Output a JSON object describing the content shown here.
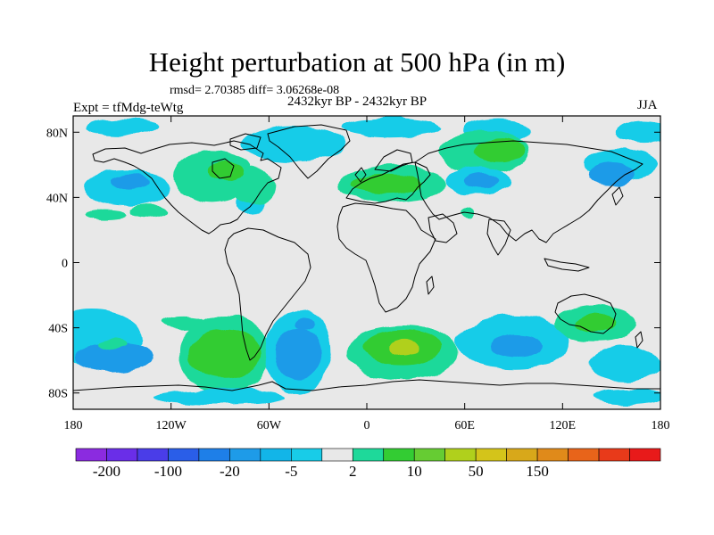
{
  "chart_data": {
    "type": "heatmap",
    "subtype": "filled contour map",
    "title": "Height perturbation at 500 hPa (in m)",
    "stats_text": "rmsd= 2.70385 diff= 3.06268e-08",
    "subtitle": "2432kyr BP - 2432kyr BP",
    "left_label": "Expt = tfMdg-teWtg",
    "right_label": "JJA",
    "x_range": [
      -180,
      180
    ],
    "y_range": [
      -90,
      90
    ],
    "x_ticks": [
      {
        "value": -180,
        "label": "180"
      },
      {
        "value": -120,
        "label": "120W"
      },
      {
        "value": -60,
        "label": "60W"
      },
      {
        "value": 0,
        "label": "0"
      },
      {
        "value": 60,
        "label": "60E"
      },
      {
        "value": 120,
        "label": "120E"
      },
      {
        "value": 180,
        "label": "180"
      }
    ],
    "y_ticks": [
      {
        "value": 80,
        "label": "80N"
      },
      {
        "value": 40,
        "label": "40N"
      },
      {
        "value": 0,
        "label": "0"
      },
      {
        "value": -40,
        "label": "40S"
      },
      {
        "value": -80,
        "label": "80S"
      }
    ],
    "colorbar": {
      "colors": [
        "#8b2be0",
        "#6a2ee8",
        "#4a3de8",
        "#2a5ee8",
        "#1e7fe8",
        "#1e9be8",
        "#12b5e8",
        "#18cce8",
        "#e8e8e8",
        "#1ed99a",
        "#33cc33",
        "#66cc33",
        "#b0d01c",
        "#d4c41a",
        "#d8a81a",
        "#e08a1a",
        "#e8641a",
        "#e83a1a",
        "#e81a1a"
      ],
      "labels": [
        {
          "bin": 1,
          "text": "-200"
        },
        {
          "bin": 3,
          "text": "-100"
        },
        {
          "bin": 5,
          "text": "-20"
        },
        {
          "bin": 7,
          "text": "-5"
        },
        {
          "bin": 9,
          "text": "2"
        },
        {
          "bin": 11,
          "text": "10"
        },
        {
          "bin": 13,
          "text": "50"
        },
        {
          "bin": 15,
          "text": "150"
        }
      ]
    },
    "anomaly_regions": [
      {
        "lon": -150,
        "lat": 83,
        "rlon": 22,
        "rlat": 5,
        "level": "light-blue"
      },
      {
        "lon": -45,
        "lat": 73,
        "rlon": 32,
        "rlat": 11,
        "level": "light-blue"
      },
      {
        "lon": 15,
        "lat": 83,
        "rlon": 30,
        "rlat": 6,
        "level": "light-blue"
      },
      {
        "lon": 80,
        "lat": 81,
        "rlon": 20,
        "rlat": 7,
        "level": "light-blue"
      },
      {
        "lon": 170,
        "lat": 80,
        "rlon": 18,
        "rlat": 7,
        "level": "light-blue"
      },
      {
        "lon": -148,
        "lat": 46,
        "rlon": 26,
        "rlat": 11,
        "level": "light-blue"
      },
      {
        "lon": -145,
        "lat": 49,
        "rlon": 12,
        "rlat": 5,
        "level": "mid-blue"
      },
      {
        "lon": -72,
        "lat": 37,
        "rlon": 8,
        "rlat": 7,
        "level": "light-blue"
      },
      {
        "lon": -160,
        "lat": 30,
        "rlon": 12,
        "rlat": 3,
        "level": "green-blue"
      },
      {
        "lon": -133,
        "lat": 32,
        "rlon": 12,
        "rlat": 4,
        "level": "green-blue"
      },
      {
        "lon": -95,
        "lat": 53,
        "rlon": 24,
        "rlat": 16,
        "level": "green-blue"
      },
      {
        "lon": -70,
        "lat": 47,
        "rlon": 13,
        "rlat": 11,
        "level": "green-blue"
      },
      {
        "lon": -87,
        "lat": 56,
        "rlon": 11,
        "rlat": 6,
        "level": "green"
      },
      {
        "lon": 15,
        "lat": 48,
        "rlon": 33,
        "rlat": 11,
        "level": "green-blue"
      },
      {
        "lon": 12,
        "lat": 48,
        "rlon": 22,
        "rlat": 6,
        "level": "green"
      },
      {
        "lon": 72,
        "lat": 68,
        "rlon": 28,
        "rlat": 13,
        "level": "green-blue"
      },
      {
        "lon": 82,
        "lat": 69,
        "rlon": 16,
        "rlat": 7,
        "level": "green"
      },
      {
        "lon": 68,
        "lat": 50,
        "rlon": 20,
        "rlat": 9,
        "level": "light-blue"
      },
      {
        "lon": 70,
        "lat": 50,
        "rlon": 11,
        "rlat": 5,
        "level": "mid-blue"
      },
      {
        "lon": 155,
        "lat": 60,
        "rlon": 22,
        "rlat": 10,
        "level": "light-blue"
      },
      {
        "lon": 150,
        "lat": 54,
        "rlon": 14,
        "rlat": 7,
        "level": "mid-blue"
      },
      {
        "lon": 62,
        "lat": 30,
        "rlon": 4,
        "rlat": 3,
        "level": "green-blue"
      },
      {
        "lon": -168,
        "lat": -46,
        "rlon": 30,
        "rlat": 17,
        "level": "light-blue"
      },
      {
        "lon": -155,
        "lat": -58,
        "rlon": 24,
        "rlat": 9,
        "level": "mid-blue"
      },
      {
        "lon": -155,
        "lat": -50,
        "rlon": 8,
        "rlat": 3,
        "level": "green-blue"
      },
      {
        "lon": -112,
        "lat": -37,
        "rlon": 14,
        "rlat": 4,
        "level": "green-blue"
      },
      {
        "lon": -87,
        "lat": -56,
        "rlon": 28,
        "rlat": 24,
        "level": "green-blue"
      },
      {
        "lon": -87,
        "lat": -56,
        "rlon": 22,
        "rlat": 15,
        "level": "green"
      },
      {
        "lon": -42,
        "lat": -54,
        "rlon": 20,
        "rlat": 26,
        "level": "light-blue"
      },
      {
        "lon": -42,
        "lat": -56,
        "rlon": 14,
        "rlat": 16,
        "level": "mid-blue"
      },
      {
        "lon": -38,
        "lat": -37,
        "rlon": 5,
        "rlat": 4,
        "level": "mid-blue"
      },
      {
        "lon": 22,
        "lat": -55,
        "rlon": 34,
        "rlat": 17,
        "level": "green-blue"
      },
      {
        "lon": 22,
        "lat": -52,
        "rlon": 24,
        "rlat": 11,
        "level": "green"
      },
      {
        "lon": 22,
        "lat": -52,
        "rlon": 9,
        "rlat": 5,
        "level": "yellow-green"
      },
      {
        "lon": 90,
        "lat": -49,
        "rlon": 35,
        "rlat": 16,
        "level": "light-blue"
      },
      {
        "lon": 92,
        "lat": -51,
        "rlon": 16,
        "rlat": 7,
        "level": "mid-blue"
      },
      {
        "lon": 140,
        "lat": -37,
        "rlon": 25,
        "rlat": 11,
        "level": "green-blue"
      },
      {
        "lon": 140,
        "lat": -37,
        "rlon": 13,
        "rlat": 6,
        "level": "green"
      },
      {
        "lon": 158,
        "lat": -62,
        "rlon": 22,
        "rlat": 11,
        "level": "light-blue"
      },
      {
        "lon": -90,
        "lat": -82,
        "rlon": 40,
        "rlat": 5,
        "level": "light-blue"
      },
      {
        "lon": 160,
        "lat": -82,
        "rlon": 22,
        "rlat": 5,
        "level": "light-blue"
      }
    ],
    "level_colors": {
      "mid-blue": "#1e9be8",
      "light-blue": "#18cce8",
      "neutral": "#e8e8e8",
      "green-blue": "#1ed99a",
      "green": "#33cc33",
      "yellow-green": "#b0d01c"
    }
  }
}
